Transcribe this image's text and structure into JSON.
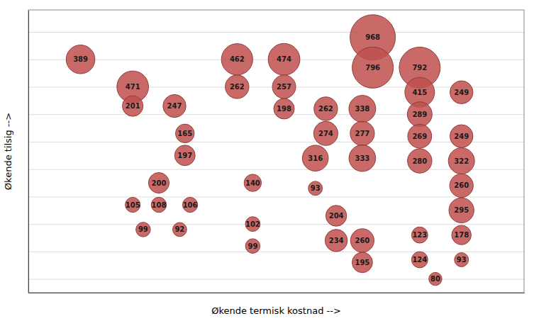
{
  "chart_data": {
    "type": "bubble",
    "xlabel": "Økende termisk kostnad -->",
    "ylabel": "Økende tilsig -->",
    "x": [
      1,
      2,
      2,
      2.8,
      3,
      3,
      4,
      4.9,
      4,
      4.9,
      4.9,
      2.5,
      2.5,
      2.0,
      3.1,
      2.9,
      2.2,
      4.3,
      4.3,
      4.3,
      5.7,
      6.4,
      5.7,
      5.5,
      5.5,
      6.4,
      6.4,
      5.9,
      5.9,
      6.4,
      6.4,
      6.6,
      6.6,
      7.5,
      7.5,
      7.5,
      7.5,
      7.5,
      8.3,
      8.3,
      8.3,
      8.3,
      8.3,
      8.3,
      8.3,
      7.5,
      7.5,
      7.8
    ],
    "values": [
      8,
      7,
      6.3,
      6.3,
      5.3,
      4.5,
      8,
      8,
      7,
      7,
      6.2,
      3.5,
      2.7,
      2.7,
      2.7,
      1.8,
      1.8,
      3.5,
      2.0,
      1.2,
      6.2,
      6.2,
      5.3,
      4.4,
      3.3,
      5.3,
      4.4,
      2.3,
      1.4,
      1.4,
      0.6,
      8.8,
      7.7,
      7.7,
      6.8,
      6.0,
      5.2,
      4.3,
      6.8,
      5.2,
      4.3,
      3.4,
      2.5,
      1.6,
      0.7,
      1.6,
      0.7,
      0.0
    ],
    "sizes": [
      389,
      471,
      201,
      247,
      165,
      197,
      462,
      474,
      262,
      257,
      198,
      200,
      108,
      105,
      106,
      92,
      99,
      140,
      102,
      99,
      262,
      338,
      274,
      316,
      93,
      277,
      333,
      204,
      234,
      260,
      195,
      968,
      796,
      792,
      415,
      289,
      269,
      280,
      249,
      249,
      322,
      260,
      295,
      178,
      93,
      123,
      124,
      80
    ],
    "color": "#c0504d",
    "xlim": [
      0.0,
      9.5
    ],
    "ylim": [
      -0.5,
      9.8
    ],
    "xticks": [],
    "yticks": [
      0,
      1,
      2,
      3,
      4,
      5,
      6,
      7,
      8,
      9
    ],
    "grid": true,
    "tick_labels": false,
    "data_labels": true
  }
}
